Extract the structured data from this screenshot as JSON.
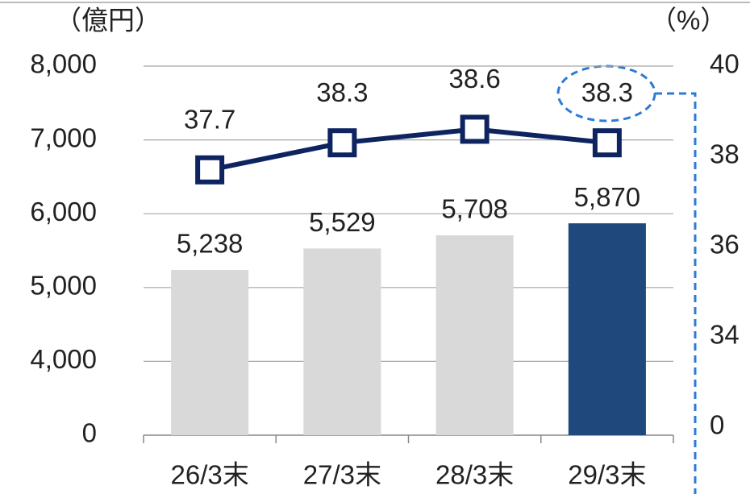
{
  "chart_data": {
    "type": "bar_line",
    "y_label": "（億円）",
    "y2_label": "（%）",
    "categories": [
      "26/3末",
      "27/3末",
      "28/3末",
      "29/3末"
    ],
    "series": [
      {
        "type": "bar",
        "values": [
          5238,
          5529,
          5708,
          5870
        ],
        "value_labels": [
          "5,238",
          "5,529",
          "5,708",
          "5,870"
        ],
        "colors": [
          "#d9d9d9",
          "#d9d9d9",
          "#d9d9d9",
          "#1f497d"
        ]
      },
      {
        "type": "line",
        "axis": "y2",
        "color": "#0d2461",
        "values": [
          37.7,
          38.3,
          38.6,
          38.3
        ]
      }
    ],
    "ylim": [
      0,
      8000
    ],
    "yticks": [
      0,
      {
        "value": 4000,
        "label": "4,000"
      },
      {
        "value": 5000,
        "label": "5,000"
      },
      {
        "value": 6000,
        "label": "6,000"
      },
      {
        "value": 7000,
        "label": "7,000"
      },
      {
        "value": 8000,
        "label": "8,000"
      }
    ],
    "y2lim": [
      0,
      40
    ],
    "y2ticks": [
      0,
      34,
      36,
      38,
      40
    ],
    "grid": true
  }
}
